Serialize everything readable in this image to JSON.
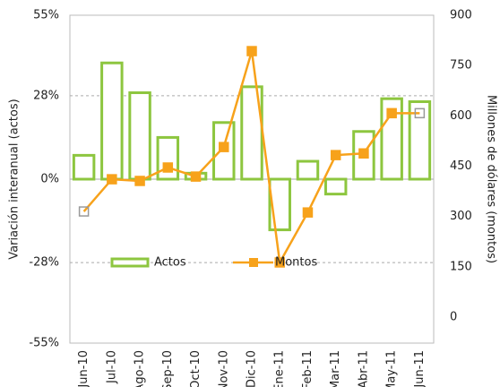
{
  "chart_data": {
    "type": "bar_line",
    "y_label": "Variación interanual (actos)",
    "y2_label": "Millones de dólares (montos)",
    "categories": [
      "Jun-10",
      "Jul-10",
      "Ago-10",
      "Sep-10",
      "Oct-10",
      "Nov-10",
      "Dic-10",
      "Ene-11",
      "Feb-11",
      "Mar-11",
      "Abr-11",
      "May-11",
      "Jun-11"
    ],
    "series": [
      {
        "name": "Actos",
        "color": "#8dc63f",
        "type": "bar",
        "values": [
          8,
          39,
          29,
          14,
          2,
          19,
          31,
          -17,
          6,
          -5,
          16,
          27,
          26
        ]
      },
      {
        "name": "Montos",
        "color": "#f7a21b",
        "type": "line",
        "axis": "y2",
        "values": [
          315,
          411,
          406,
          446,
          419,
          507,
          793,
          163,
          312,
          483,
          488,
          608,
          608
        ]
      }
    ],
    "ylim": [
      -55,
      55
    ],
    "yticks": [
      {
        "value": -55,
        "label": "-55%"
      },
      {
        "value": -28,
        "label": "-28%"
      },
      {
        "value": 0,
        "label": "0%"
      },
      {
        "value": 28,
        "label": "28%"
      },
      {
        "value": 55,
        "label": "55%"
      }
    ],
    "y2lim": [
      0,
      900
    ],
    "y2ticks": [
      0,
      150,
      300,
      450,
      600,
      750,
      900
    ],
    "grid": true
  }
}
